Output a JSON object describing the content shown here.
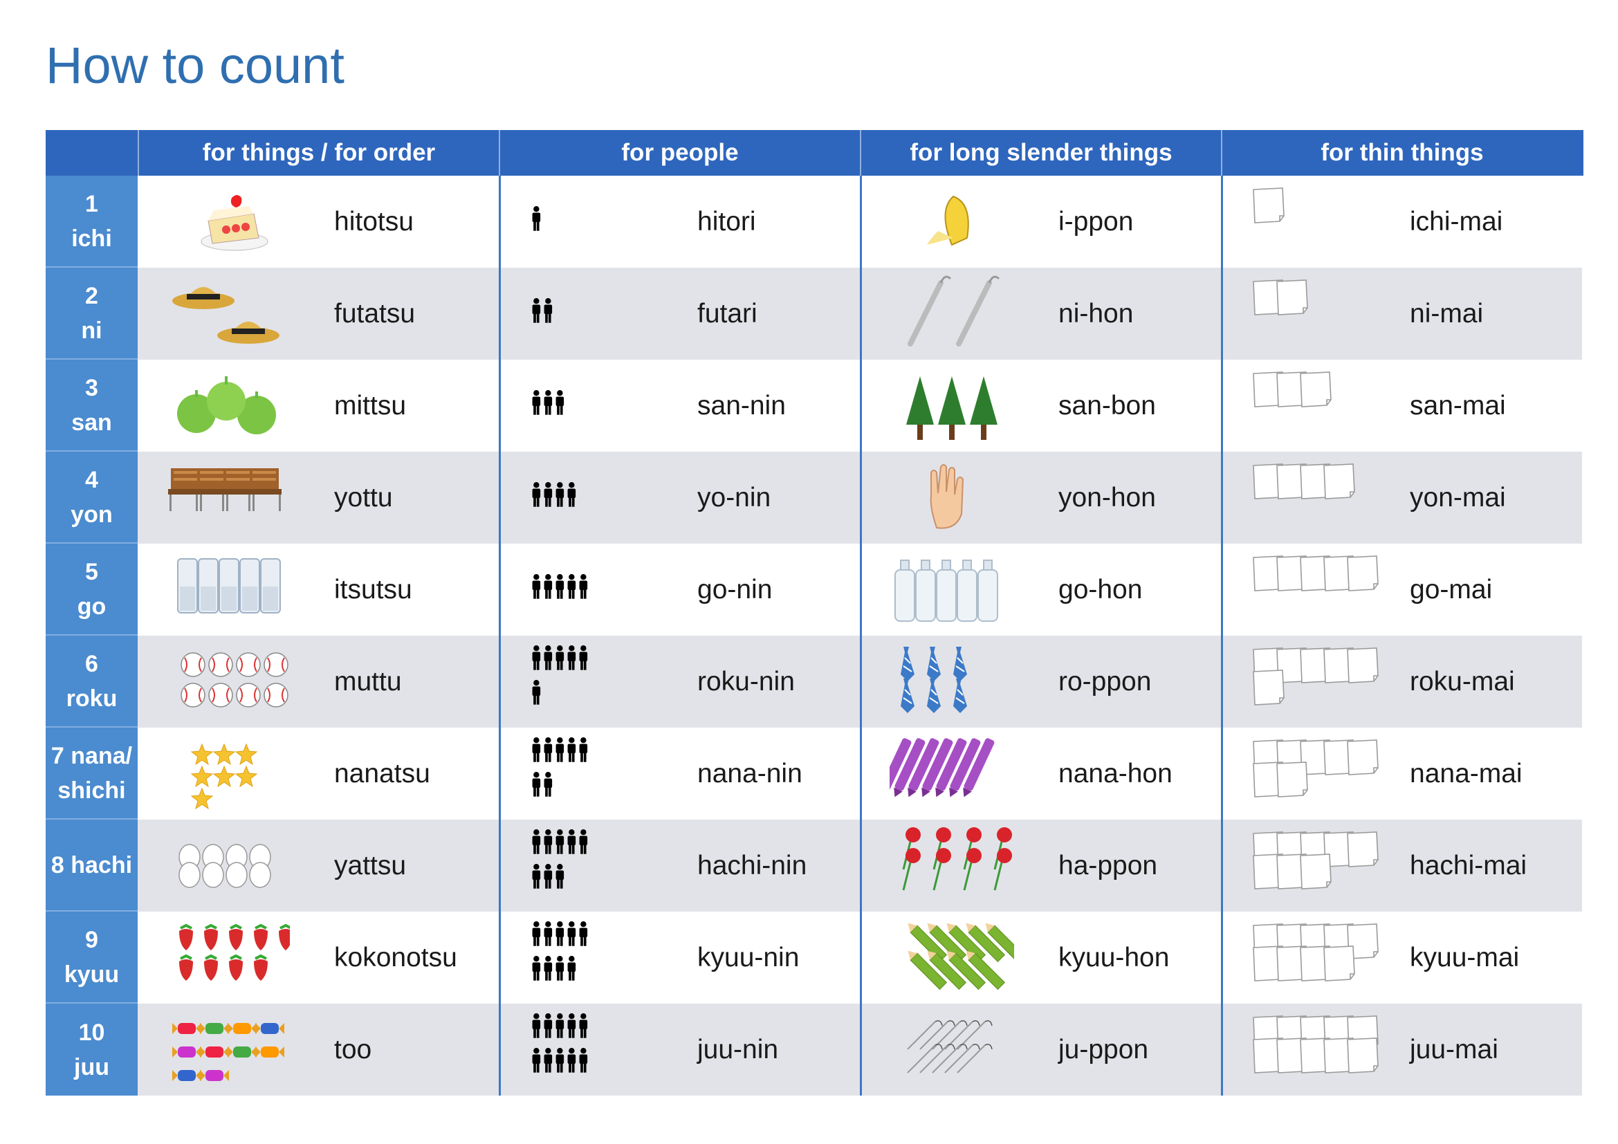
{
  "title": "How to count",
  "headers": [
    "for things / for order",
    "for people",
    "for long slender things",
    "for thin things"
  ],
  "rows": [
    {
      "n": "1",
      "label": "ichi",
      "things": "hitotsu",
      "people": "hitori",
      "long": "i-ppon",
      "thin": "ichi-mai",
      "things_icon": "cake-icon",
      "long_icon": "banana-icon"
    },
    {
      "n": "2",
      "label": "ni",
      "things": "futatsu",
      "people": "futari",
      "long": "ni-hon",
      "thin": "ni-mai",
      "things_icon": "hat-icon",
      "long_icon": "umbrella-icon"
    },
    {
      "n": "3",
      "label": "san",
      "things": "mittsu",
      "people": "san-nin",
      "long": "san-bon",
      "thin": "san-mai",
      "things_icon": "apple-icon",
      "long_icon": "tree-icon"
    },
    {
      "n": "4",
      "label": "yon",
      "things": "yottu",
      "people": "yo-nin",
      "long": "yon-hon",
      "thin": "yon-mai",
      "things_icon": "chair-icon",
      "long_icon": "finger-icon"
    },
    {
      "n": "5",
      "label": "go",
      "things": "itsutsu",
      "people": "go-nin",
      "long": "go-hon",
      "thin": "go-mai",
      "things_icon": "glass-icon",
      "long_icon": "bottle-icon"
    },
    {
      "n": "6",
      "label": "roku",
      "things": "muttu",
      "people": "roku-nin",
      "long": "ro-ppon",
      "thin": "roku-mai",
      "things_icon": "baseball-icon",
      "long_icon": "necktie-icon"
    },
    {
      "n": "7 nana/",
      "label": "shichi",
      "things": "nanatsu",
      "people": "nana-nin",
      "long": "nana-hon",
      "thin": "nana-mai",
      "things_icon": "star-icon",
      "long_icon": "pen-icon"
    },
    {
      "n": "8 hachi",
      "label": "",
      "things": "yattsu",
      "people": "hachi-nin",
      "long": "ha-ppon",
      "thin": "hachi-mai",
      "things_icon": "egg-icon",
      "long_icon": "rose-icon"
    },
    {
      "n": "9",
      "label": "kyuu",
      "things": "kokonotsu",
      "people": "kyuu-nin",
      "long": "kyuu-hon",
      "thin": "kyuu-mai",
      "things_icon": "strawberry-icon",
      "long_icon": "pencil-icon"
    },
    {
      "n": "10",
      "label": "juu",
      "things": "too",
      "people": "juu-nin",
      "long": "ju-ppon",
      "thin": "juu-mai",
      "things_icon": "candy-icon",
      "long_icon": "needle-icon"
    }
  ],
  "colors": {
    "title": "#2f6fb0",
    "header_bg": "#2e66bd",
    "number_bg": "#4b8bcf",
    "alt_row": "#e2e3e8",
    "divider": "#3b78c6"
  }
}
